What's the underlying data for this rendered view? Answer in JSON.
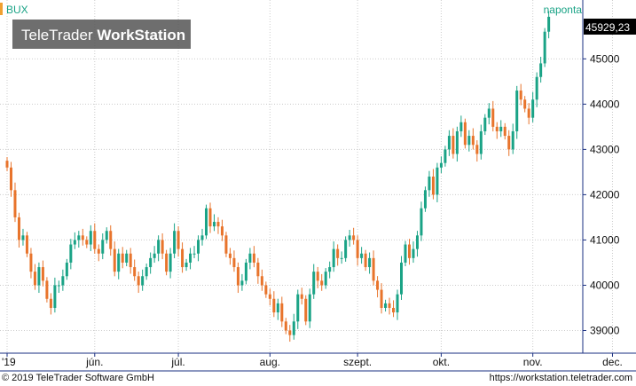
{
  "watermark": {
    "prefix": "TeleTrader ",
    "bold": "WorkStation"
  },
  "footer": {
    "copyright": "© 2019 TeleTrader Software GmbH",
    "url": "https://workstation.teletrader.com"
  },
  "colors": {
    "up": "#1aa386",
    "down": "#e8742c",
    "grid": "#cccccc",
    "axis": "#1a2f80",
    "price_label_bg": "#000000",
    "symbol_marker": "#f0a030"
  },
  "chart_data": {
    "type": "candlestick",
    "symbol": "BUX",
    "interval_label": "naponta",
    "last_value_label": "45929,23",
    "last_value": 45929.23,
    "ylim": [
      38500,
      46300
    ],
    "y_ticks": [
      39000,
      40000,
      41000,
      42000,
      43000,
      44000,
      45000
    ],
    "y_tick_labels": [
      "39000",
      "40000",
      "41000",
      "42000",
      "43000",
      "44000",
      "45000"
    ],
    "x_labels": [
      {
        "label": "'19",
        "index": 0
      },
      {
        "label": "jún.",
        "index": 22
      },
      {
        "label": "júl.",
        "index": 43
      },
      {
        "label": "aug.",
        "index": 66
      },
      {
        "label": "szept.",
        "index": 88
      },
      {
        "label": "okt.",
        "index": 109
      },
      {
        "label": "nov.",
        "index": 132
      },
      {
        "label": "dec.",
        "index": 152
      }
    ],
    "closes": [
      42600,
      42100,
      41500,
      41000,
      41100,
      40700,
      40300,
      40000,
      40400,
      40100,
      39700,
      39500,
      40000,
      40000,
      40200,
      40500,
      40900,
      41000,
      41100,
      41000,
      40900,
      41200,
      40800,
      40700,
      41000,
      41200,
      40800,
      40300,
      40700,
      40500,
      40700,
      40400,
      40200,
      40000,
      40200,
      40400,
      40600,
      40700,
      41000,
      40700,
      40300,
      40700,
      41200,
      40800,
      40400,
      40500,
      40700,
      40700,
      41000,
      41100,
      41700,
      41300,
      41400,
      41300,
      41100,
      40700,
      40600,
      40400,
      40000,
      40100,
      40500,
      40700,
      40500,
      40200,
      40000,
      39800,
      39700,
      39400,
      39600,
      39200,
      39000,
      38900,
      39200,
      39800,
      39700,
      39200,
      39800,
      40300,
      40100,
      40000,
      40300,
      40400,
      40800,
      40600,
      40600,
      41000,
      41100,
      41000,
      40600,
      40700,
      40400,
      40600,
      40100,
      39900,
      39500,
      39600,
      39500,
      39400,
      39800,
      40500,
      40900,
      40600,
      40800,
      41100,
      41700,
      42100,
      42400,
      42000,
      42600,
      42700,
      43000,
      43300,
      42900,
      43400,
      43600,
      43100,
      43300,
      43100,
      42900,
      43400,
      43700,
      43900,
      43500,
      43400,
      43500,
      43300,
      43000,
      43400,
      44300,
      44100,
      43900,
      43700,
      44100,
      44600,
      44900,
      45600,
      45929.23
    ]
  }
}
